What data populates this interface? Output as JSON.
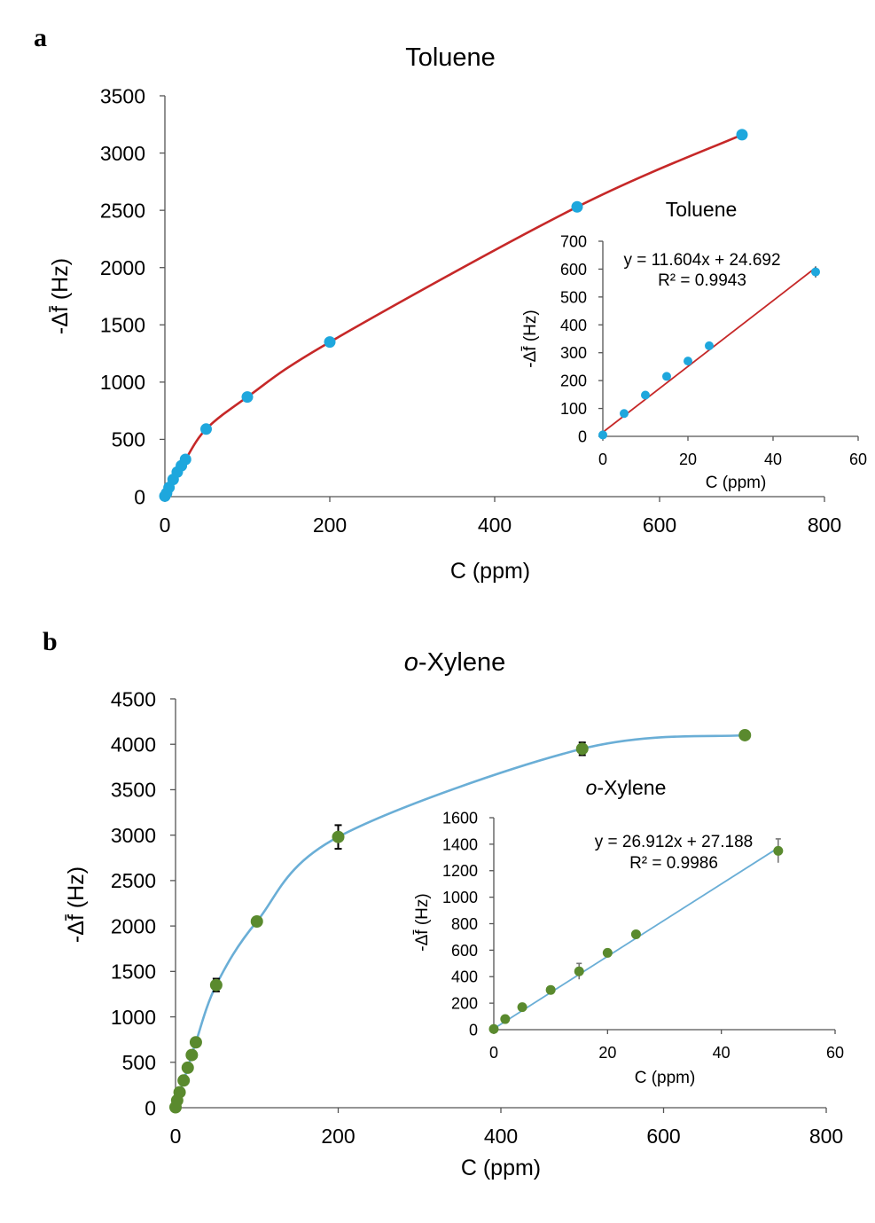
{
  "chart_data": [
    {
      "panel": "a",
      "type": "scatter",
      "title": "Toluene",
      "xlabel": "C (ppm)",
      "ylabel": "-Δf̄ (Hz)",
      "xlim": [
        0,
        800
      ],
      "ylim": [
        0,
        3500
      ],
      "xticks": [
        "0",
        "200",
        "400",
        "600",
        "800"
      ],
      "yticks": [
        "0",
        "500",
        "1000",
        "1500",
        "2000",
        "2500",
        "3000",
        "3500"
      ],
      "marker_color": "#1ea7dd",
      "line_color": "#c62828",
      "series": [
        {
          "x": [
            0,
            2,
            5,
            10,
            15,
            20,
            25,
            50,
            100,
            200,
            500,
            700
          ],
          "y": [
            5,
            30,
            80,
            150,
            215,
            270,
            325,
            590,
            870,
            1350,
            2530,
            3160
          ]
        }
      ],
      "inset": {
        "title": "Toluene",
        "xlabel": "C (ppm)",
        "ylabel": "-Δf̄ (Hz)",
        "xlim": [
          0,
          60
        ],
        "ylim": [
          0,
          700
        ],
        "xticks": [
          "0",
          "20",
          "40",
          "60"
        ],
        "yticks": [
          "0",
          "100",
          "200",
          "300",
          "400",
          "500",
          "600",
          "700"
        ],
        "equation": "y = 11.604x + 24.692",
        "r2": "R² = 0.9943",
        "fit": {
          "slope": 11.604,
          "intercept": 24.692
        },
        "x": [
          0,
          5,
          10,
          15,
          20,
          25,
          50
        ],
        "y": [
          5,
          82,
          148,
          215,
          270,
          325,
          590
        ],
        "yerr": [
          0,
          5,
          5,
          5,
          5,
          5,
          20
        ]
      }
    },
    {
      "panel": "b",
      "type": "scatter",
      "title_prefix": "o",
      "title_suffix": "-Xylene",
      "xlabel": "C (ppm)",
      "ylabel": "-Δf̄ (Hz)",
      "xlim": [
        0,
        800
      ],
      "ylim": [
        0,
        4500
      ],
      "xticks": [
        "0",
        "200",
        "400",
        "600",
        "800"
      ],
      "yticks": [
        "0",
        "500",
        "1000",
        "1500",
        "2000",
        "2500",
        "3000",
        "3500",
        "4000",
        "4500"
      ],
      "marker_color": "#5a8a2e",
      "line_color": "#6aaed6",
      "series": [
        {
          "x": [
            0,
            2,
            5,
            10,
            15,
            20,
            25,
            50,
            100,
            200,
            500,
            700
          ],
          "y": [
            5,
            80,
            170,
            300,
            440,
            580,
            720,
            1350,
            2050,
            2980,
            3950,
            4100
          ],
          "yerr": [
            0,
            0,
            0,
            0,
            0,
            0,
            0,
            70,
            0,
            130,
            70,
            0
          ]
        }
      ],
      "inset": {
        "title_prefix": "o",
        "title_suffix": "-Xylene",
        "xlabel": "C (ppm)",
        "ylabel": "-Δf̄ (Hz)",
        "xlim": [
          0,
          60
        ],
        "ylim": [
          0,
          1600
        ],
        "xticks": [
          "0",
          "20",
          "40",
          "60"
        ],
        "yticks": [
          "0",
          "200",
          "400",
          "600",
          "800",
          "1000",
          "1200",
          "1400",
          "1600"
        ],
        "equation": "y = 26.912x + 27.188",
        "r2": "R² = 0.9986",
        "fit": {
          "slope": 26.912,
          "intercept": 27.188
        },
        "x": [
          0,
          2,
          5,
          10,
          15,
          20,
          25,
          50
        ],
        "y": [
          5,
          80,
          170,
          300,
          440,
          580,
          720,
          1350
        ],
        "yerr": [
          0,
          0,
          0,
          0,
          60,
          0,
          0,
          90
        ]
      }
    }
  ]
}
